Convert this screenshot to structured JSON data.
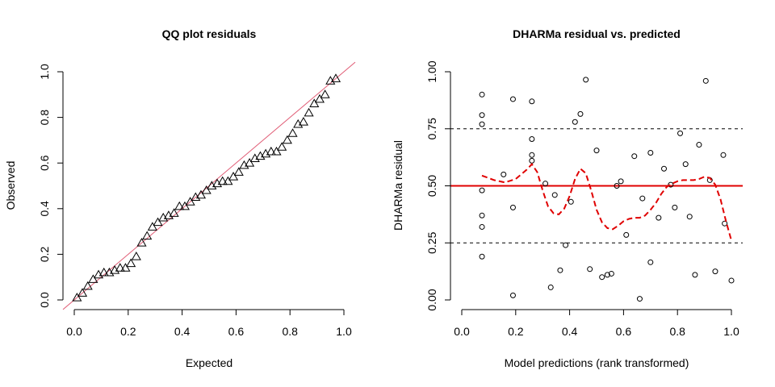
{
  "chart_data": [
    {
      "type": "scatter",
      "title": "QQ plot residuals",
      "xlabel": "Expected",
      "ylabel": "Observed",
      "xlim": [
        0,
        1
      ],
      "ylim": [
        0,
        1
      ],
      "x_ticks": [
        "0.0",
        "0.2",
        "0.4",
        "0.6",
        "0.8",
        "1.0"
      ],
      "y_ticks": [
        "0.0",
        "0.2",
        "0.4",
        "0.6",
        "0.8",
        "1.0"
      ],
      "marker": "triangle",
      "reference_line": {
        "slope": 1,
        "intercept": 0,
        "color": "#e05a74"
      },
      "points": {
        "x": [
          0.01,
          0.03,
          0.05,
          0.07,
          0.09,
          0.11,
          0.13,
          0.15,
          0.17,
          0.19,
          0.21,
          0.23,
          0.25,
          0.27,
          0.29,
          0.31,
          0.33,
          0.35,
          0.37,
          0.39,
          0.41,
          0.43,
          0.45,
          0.47,
          0.49,
          0.51,
          0.53,
          0.55,
          0.57,
          0.59,
          0.61,
          0.63,
          0.65,
          0.67,
          0.69,
          0.71,
          0.73,
          0.75,
          0.77,
          0.79,
          0.81,
          0.83,
          0.85,
          0.87,
          0.89,
          0.91,
          0.93,
          0.95,
          0.97
        ],
        "y": [
          0.01,
          0.03,
          0.06,
          0.09,
          0.11,
          0.12,
          0.12,
          0.13,
          0.14,
          0.14,
          0.16,
          0.19,
          0.25,
          0.28,
          0.32,
          0.34,
          0.36,
          0.37,
          0.38,
          0.41,
          0.41,
          0.43,
          0.45,
          0.46,
          0.48,
          0.5,
          0.51,
          0.52,
          0.52,
          0.54,
          0.56,
          0.59,
          0.6,
          0.62,
          0.63,
          0.64,
          0.65,
          0.65,
          0.67,
          0.7,
          0.73,
          0.77,
          0.78,
          0.82,
          0.86,
          0.88,
          0.9,
          0.96,
          0.97
        ]
      }
    },
    {
      "type": "scatter",
      "title": "DHARMa residual vs. predicted",
      "xlabel": "Model predictions (rank transformed)",
      "ylabel": "DHARMa residual",
      "xlim": [
        0,
        1
      ],
      "ylim": [
        0,
        1
      ],
      "x_ticks": [
        "0.0",
        "0.2",
        "0.4",
        "0.6",
        "0.8",
        "1.0"
      ],
      "y_ticks": [
        "0.00",
        "0.25",
        "0.50",
        "0.75",
        "1.00"
      ],
      "marker": "circle",
      "hlines": [
        {
          "y": 0.25,
          "style": "dashed",
          "color": "#000000"
        },
        {
          "y": 0.5,
          "style": "solid",
          "color": "#e00000"
        },
        {
          "y": 0.75,
          "style": "dashed",
          "color": "#000000"
        }
      ],
      "smooth_line": {
        "color": "#e00000",
        "style": "dashed",
        "x": [
          0.075,
          0.12,
          0.16,
          0.2,
          0.24,
          0.26,
          0.28,
          0.3,
          0.32,
          0.34,
          0.36,
          0.38,
          0.4,
          0.42,
          0.44,
          0.46,
          0.48,
          0.5,
          0.52,
          0.54,
          0.56,
          0.58,
          0.6,
          0.62,
          0.64,
          0.66,
          0.68,
          0.7,
          0.72,
          0.74,
          0.76,
          0.78,
          0.8,
          0.82,
          0.84,
          0.86,
          0.88,
          0.9,
          0.92,
          0.94,
          0.96,
          0.98,
          1.0
        ],
        "y": [
          0.545,
          0.525,
          0.515,
          0.53,
          0.57,
          0.595,
          0.56,
          0.48,
          0.41,
          0.38,
          0.375,
          0.4,
          0.455,
          0.53,
          0.575,
          0.555,
          0.48,
          0.395,
          0.34,
          0.315,
          0.31,
          0.325,
          0.345,
          0.355,
          0.36,
          0.36,
          0.37,
          0.395,
          0.425,
          0.465,
          0.495,
          0.51,
          0.52,
          0.525,
          0.525,
          0.525,
          0.53,
          0.54,
          0.535,
          0.505,
          0.44,
          0.345,
          0.26
        ]
      },
      "points": {
        "x": [
          0.075,
          0.075,
          0.075,
          0.075,
          0.075,
          0.075,
          0.075,
          0.155,
          0.19,
          0.19,
          0.19,
          0.26,
          0.26,
          0.26,
          0.26,
          0.31,
          0.33,
          0.345,
          0.365,
          0.385,
          0.405,
          0.42,
          0.44,
          0.46,
          0.475,
          0.5,
          0.52,
          0.54,
          0.555,
          0.575,
          0.59,
          0.61,
          0.64,
          0.66,
          0.67,
          0.7,
          0.7,
          0.73,
          0.75,
          0.775,
          0.79,
          0.81,
          0.83,
          0.845,
          0.865,
          0.88,
          0.905,
          0.92,
          0.94,
          0.97,
          0.975,
          1.0
        ],
        "y": [
          0.9,
          0.81,
          0.77,
          0.48,
          0.37,
          0.32,
          0.19,
          0.55,
          0.88,
          0.405,
          0.02,
          0.87,
          0.705,
          0.635,
          0.61,
          0.51,
          0.055,
          0.46,
          0.13,
          0.24,
          0.43,
          0.78,
          0.815,
          0.965,
          0.135,
          0.655,
          0.1,
          0.11,
          0.115,
          0.5,
          0.52,
          0.285,
          0.63,
          0.005,
          0.445,
          0.645,
          0.165,
          0.36,
          0.575,
          0.505,
          0.405,
          0.73,
          0.595,
          0.365,
          0.11,
          0.68,
          0.96,
          0.525,
          0.125,
          0.635,
          0.335,
          0.085
        ]
      }
    }
  ]
}
